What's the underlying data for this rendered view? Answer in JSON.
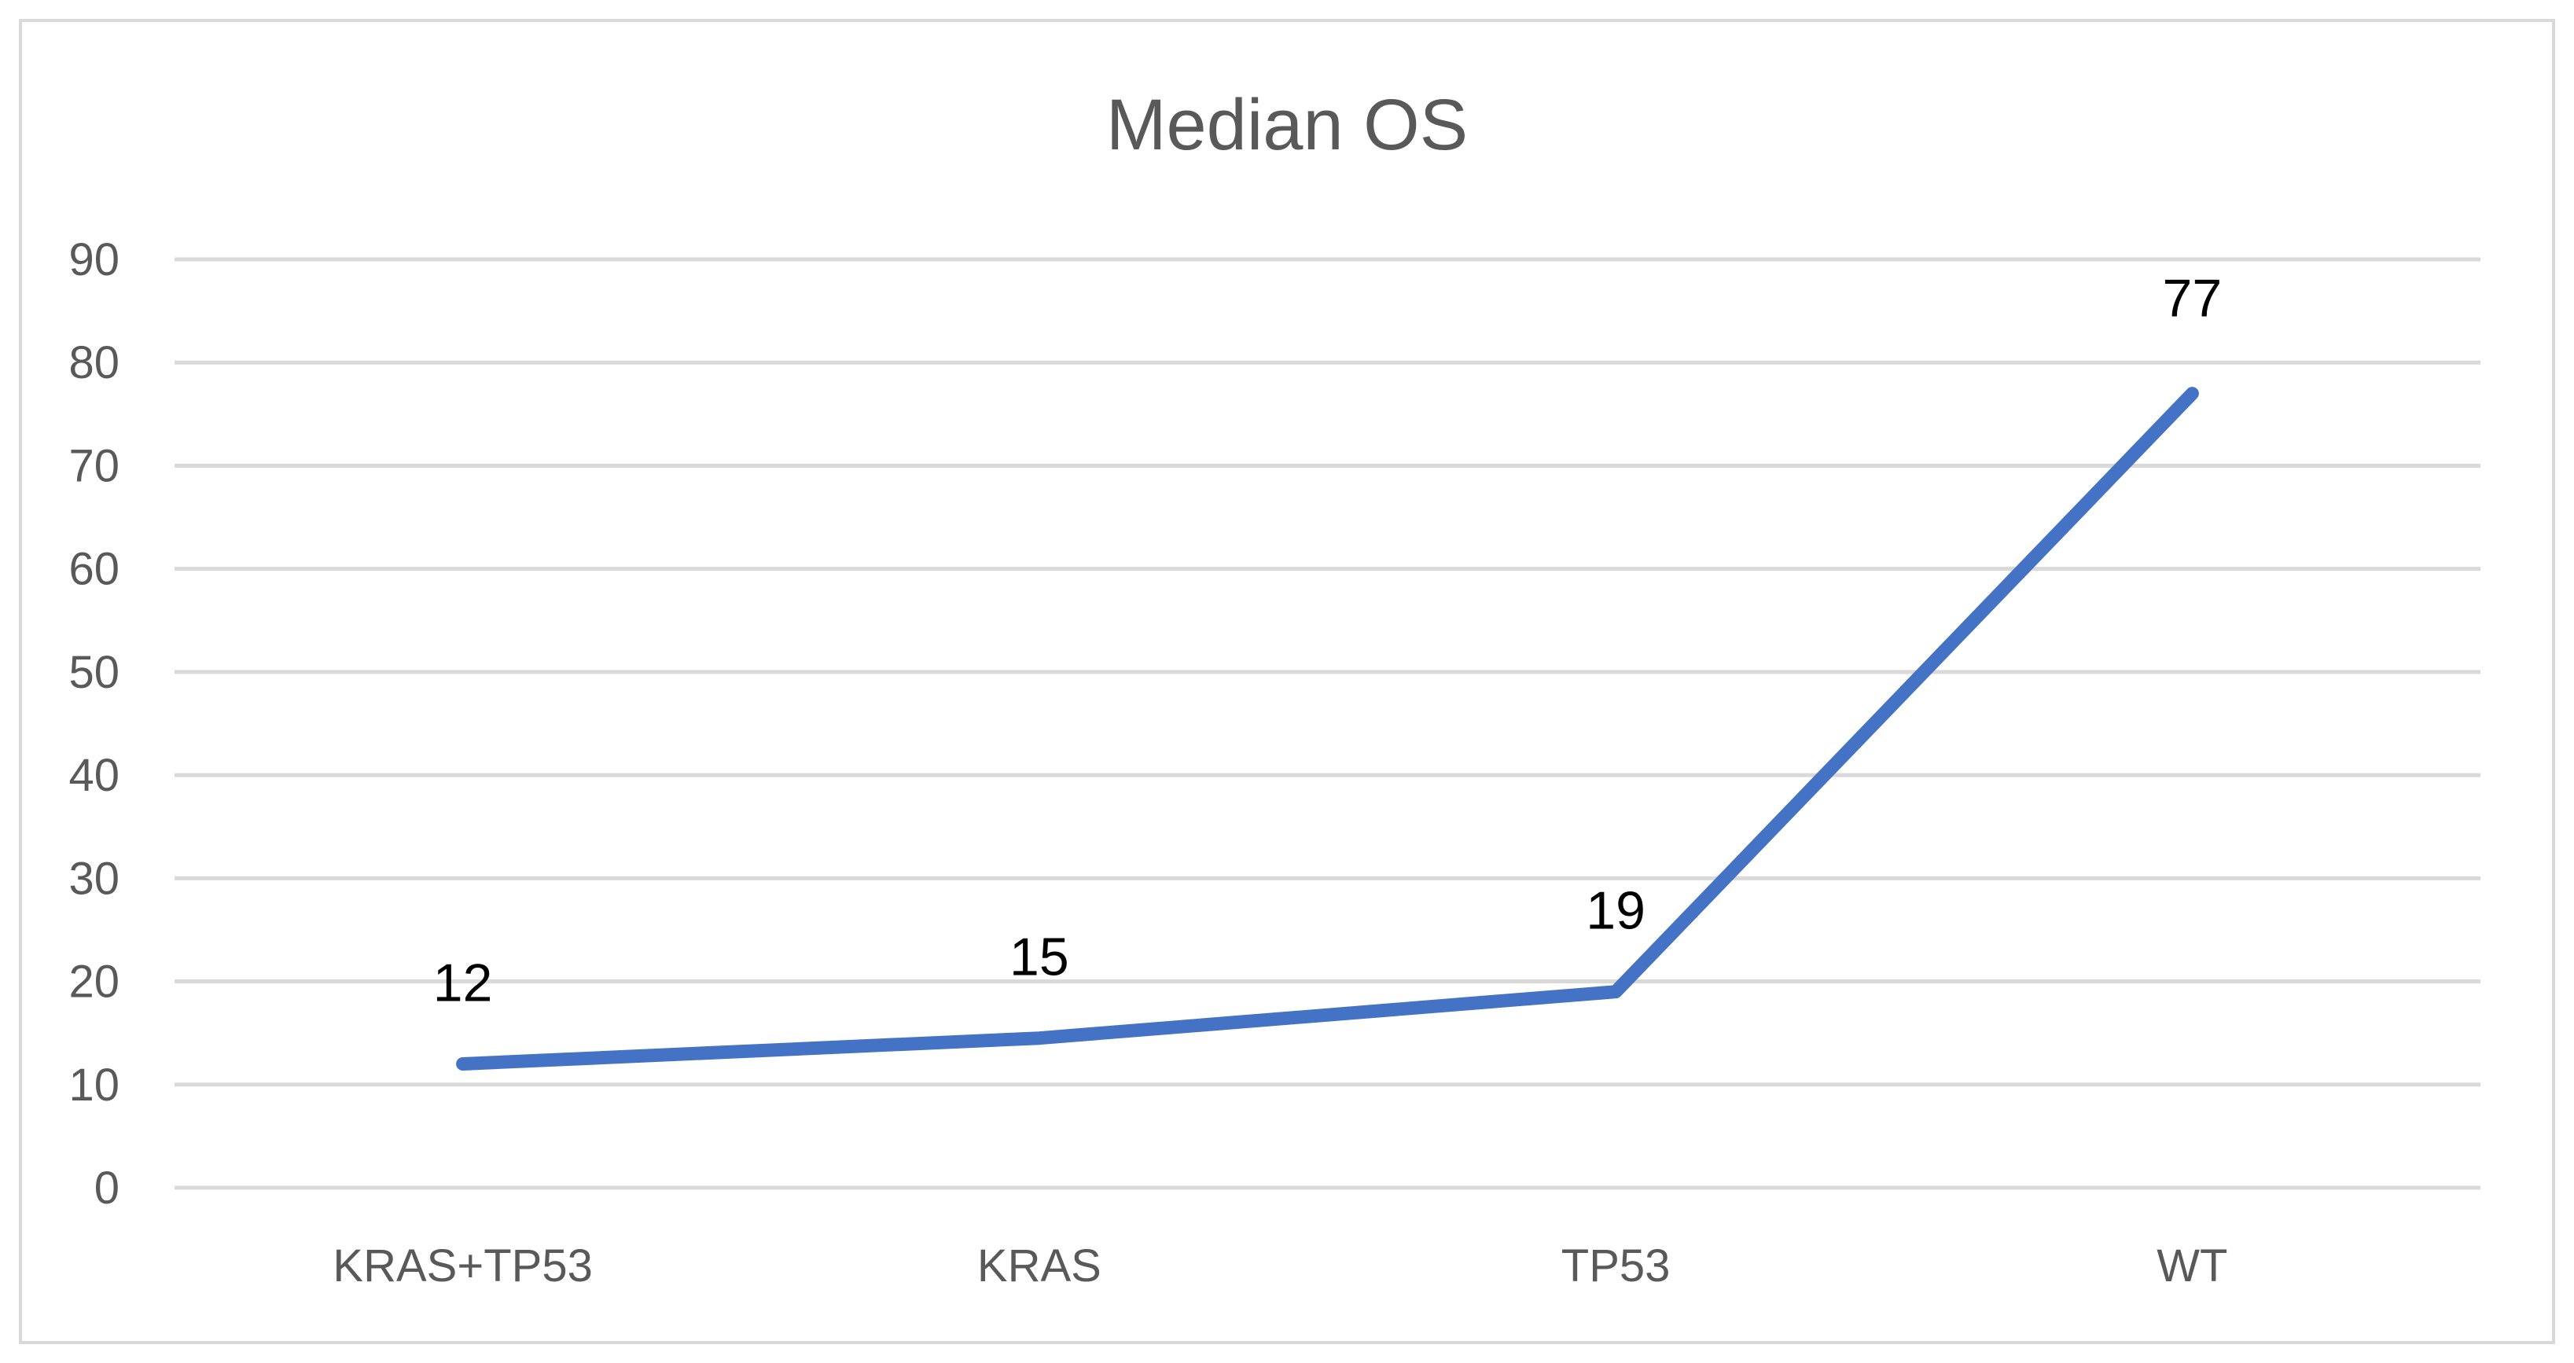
{
  "chart_data": {
    "type": "line",
    "title": "Median OS",
    "categories": [
      "KRAS+TP53",
      "KRAS",
      "TP53",
      "WT"
    ],
    "series": [
      {
        "values": [
          12,
          14.5,
          19,
          77
        ],
        "data_labels": [
          "12",
          "15",
          "19",
          "77"
        ],
        "color": "#4472c4"
      }
    ],
    "ylim": [
      0,
      90
    ],
    "yticks": [
      0,
      10,
      20,
      30,
      40,
      50,
      60,
      70,
      80,
      90
    ],
    "xlabel": "",
    "ylabel": "",
    "grid": true,
    "legend": "none"
  }
}
